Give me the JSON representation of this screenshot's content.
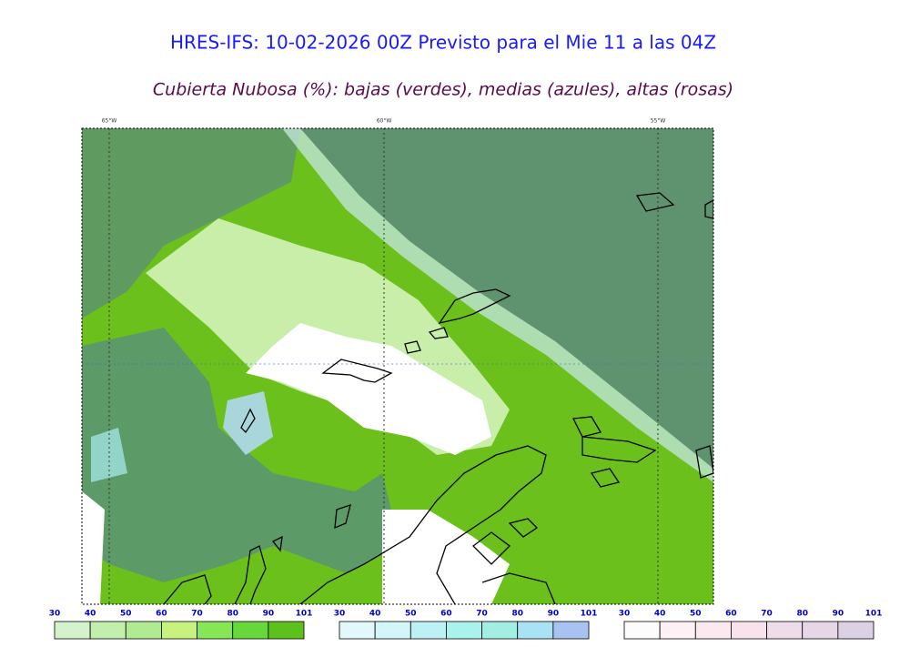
{
  "header": {
    "title": "HRES-IFS: 10-02-2026 00Z Previsto para el Mie 11 a las 04Z",
    "subtitle": "Cubierta Nubosa (%): bajas (verdes), medias (azules), altas (rosas)"
  },
  "map": {
    "lon_labels": [
      "65°W",
      "60°W",
      "55°W"
    ]
  },
  "colorbars": [
    {
      "ticks": [
        30,
        40,
        50,
        60,
        70,
        80,
        90,
        101
      ],
      "colors": [
        "#d4f2cc",
        "#c2efac",
        "#b0ea92",
        "#c8f280",
        "#86e656",
        "#66d83c",
        "#5ec01c"
      ]
    },
    {
      "ticks": [
        30,
        40,
        50,
        60,
        70,
        80,
        90,
        101
      ],
      "colors": [
        "#e2f9fb",
        "#d2f6fa",
        "#bcf2f5",
        "#aaf2ec",
        "#a2eee2",
        "#a8e2f4",
        "#a8c2f2"
      ]
    },
    {
      "ticks": [
        30,
        40,
        50,
        60,
        70,
        80,
        90,
        101
      ],
      "colors": [
        "#fcfcfc",
        "#fdf1f5",
        "#fbe9ef",
        "#f8e2eb",
        "#eedcea",
        "#e6d6e6",
        "#dcd0e4"
      ]
    }
  ]
}
